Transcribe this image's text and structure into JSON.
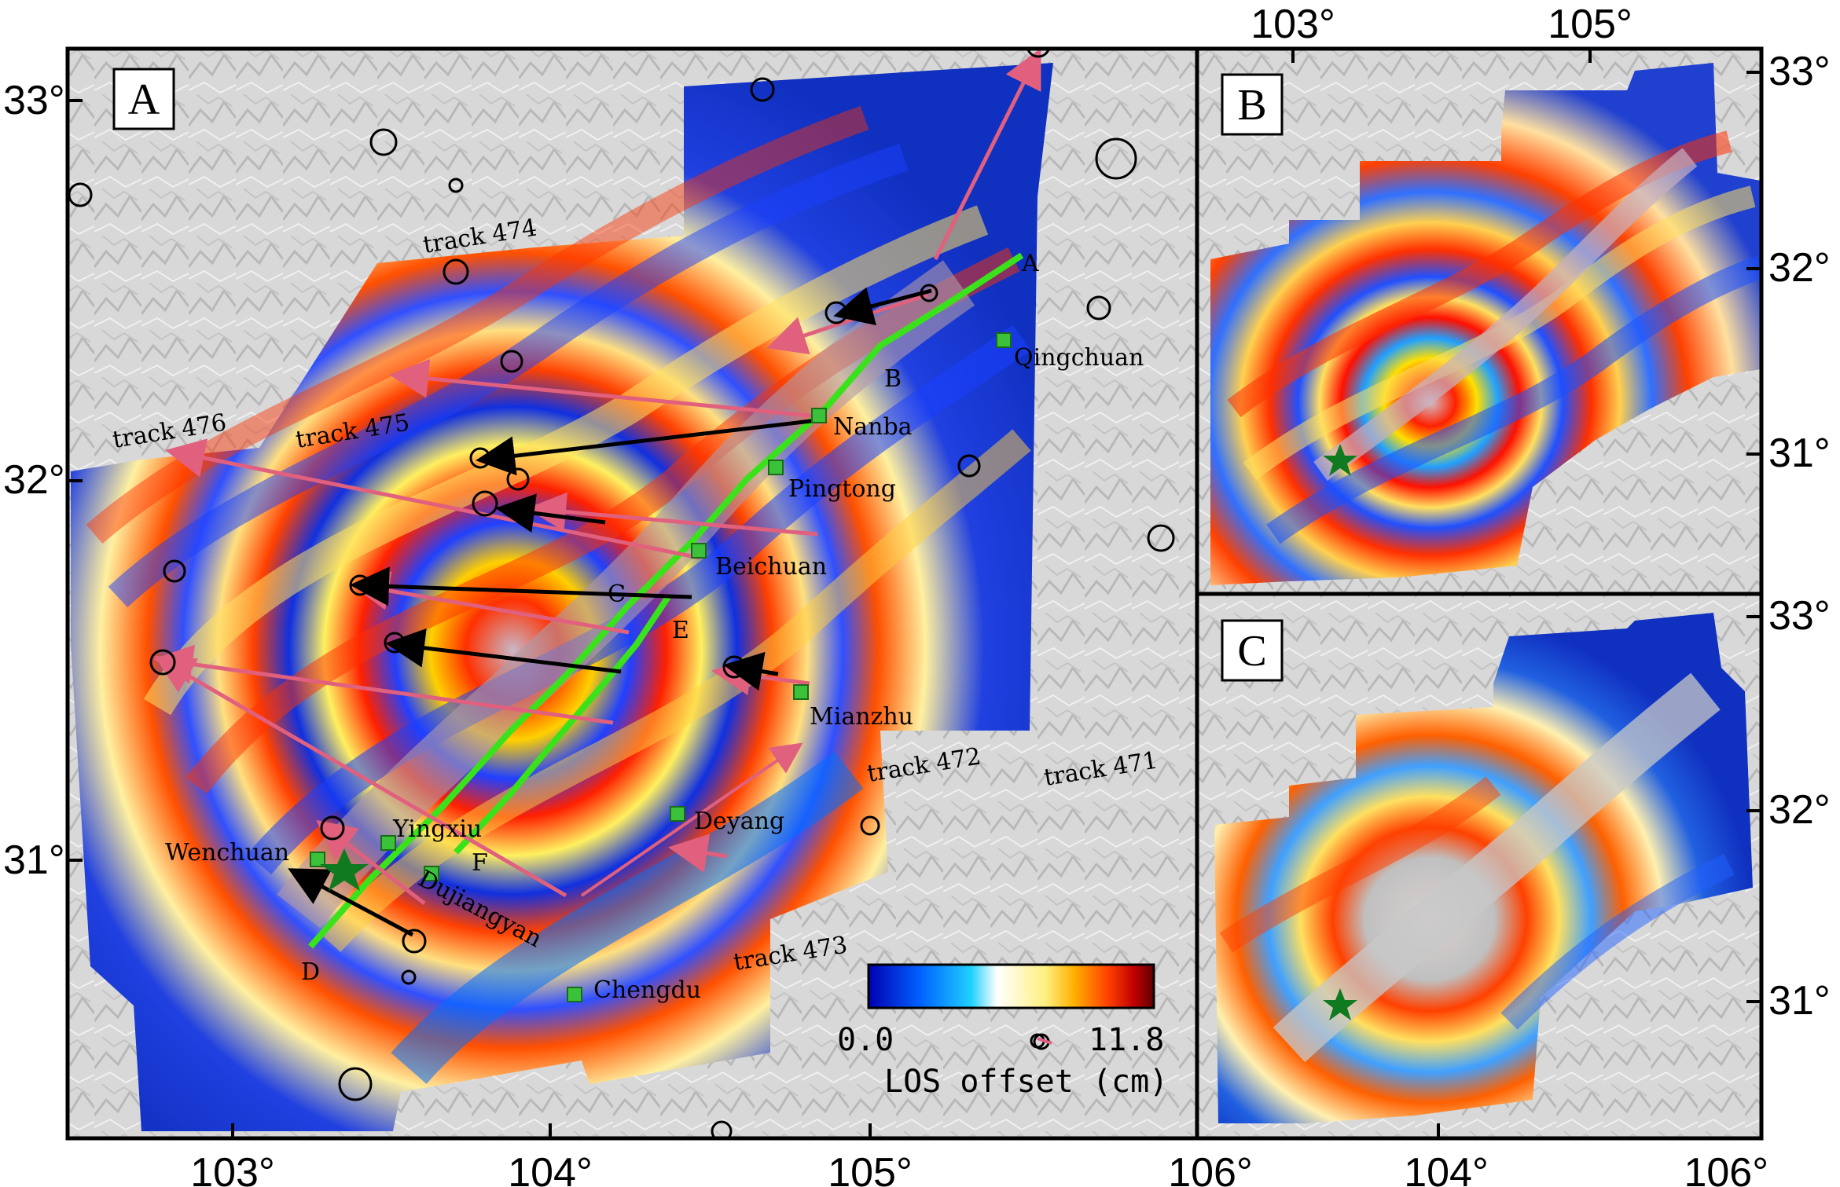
{
  "panels": {
    "a": {
      "letter": "A"
    },
    "b": {
      "letter": "B"
    },
    "c": {
      "letter": "C"
    }
  },
  "axes": {
    "bottom_ticks": [
      "103°",
      "104°",
      "105°",
      "106°",
      "104°",
      "106°"
    ],
    "left_ticks": [
      "33°",
      "32°",
      "31°"
    ],
    "top_ticks": [
      "103°",
      "105°"
    ],
    "right_ticks_b": [
      "33°",
      "32°",
      "31°"
    ],
    "right_ticks_c": [
      "33°",
      "32°",
      "31°"
    ]
  },
  "tracks": [
    "track 474",
    "track 476",
    "track 475",
    "track 472",
    "track 471",
    "track 473"
  ],
  "cities": [
    "Qingchuan",
    "Nanba",
    "Pingtong",
    "Beichuan",
    "Mianzhu",
    "Deyang",
    "Yingxiu",
    "Wenchuan",
    "Dujiangyan",
    "Chengdu"
  ],
  "fault_points": [
    "A",
    "B",
    "C",
    "D",
    "E",
    "F"
  ],
  "colorbar": {
    "min_label": "0.0",
    "max_label": "11.8",
    "title": "LOS offset (cm)",
    "colors": [
      "#0000b0",
      "#0060ff",
      "#20d0ff",
      "#ffffff",
      "#fff080",
      "#ffb000",
      "#ff4000",
      "#c00000",
      "#600000"
    ]
  },
  "colors": {
    "fault": "#39e21a",
    "arrow_gps": "#e0607e",
    "arrow_model": "#000000",
    "city_marker": "#3cc23a",
    "epicenter": "#0f7a20"
  }
}
